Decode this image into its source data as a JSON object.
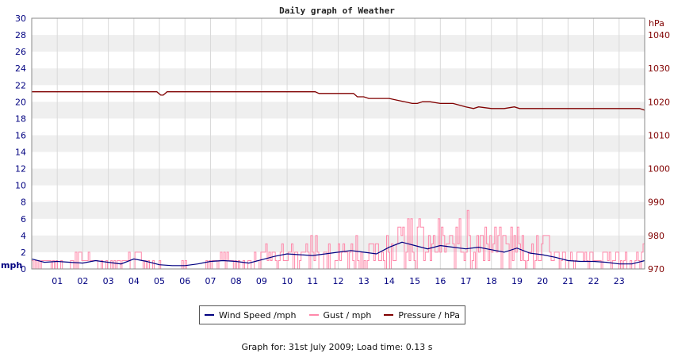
{
  "chart_data": {
    "type": "line",
    "title": "Daily graph of Weather",
    "grid": true,
    "x_ticks": [
      "01",
      "02",
      "03",
      "04",
      "05",
      "06",
      "07",
      "08",
      "09",
      "10",
      "11",
      "12",
      "13",
      "14",
      "15",
      "16",
      "17",
      "18",
      "19",
      "20",
      "21",
      "22",
      "23"
    ],
    "x_range": [
      0,
      24
    ],
    "y_left": {
      "label": "mph",
      "ticks": [
        0,
        2,
        4,
        6,
        8,
        10,
        12,
        14,
        16,
        18,
        20,
        22,
        24,
        26,
        28,
        30
      ],
      "range": [
        0,
        30
      ]
    },
    "y_right": {
      "label": "hPa",
      "ticks": [
        970,
        980,
        990,
        1000,
        1010,
        1020,
        1030,
        1040
      ],
      "range": [
        970,
        1045
      ]
    },
    "legend_position": "bottom",
    "series": [
      {
        "name": "Wind Speed /mph",
        "axis": "left",
        "color": "#000080",
        "x": [
          0,
          0.5,
          1,
          1.5,
          2,
          2.5,
          3,
          3.5,
          4,
          4.5,
          5,
          5.5,
          6,
          6.5,
          7,
          7.5,
          8,
          8.5,
          9,
          9.5,
          10,
          10.5,
          11,
          11.5,
          12,
          12.5,
          13,
          13.5,
          14,
          14.5,
          15,
          15.5,
          16,
          16.5,
          17,
          17.5,
          18,
          18.5,
          19,
          19.5,
          20,
          20.5,
          21,
          21.5,
          22,
          22.5,
          23,
          23.5,
          24
        ],
        "values": [
          1.2,
          0.8,
          0.9,
          0.8,
          0.7,
          1.0,
          0.8,
          0.6,
          1.2,
          0.9,
          0.5,
          0.4,
          0.4,
          0.6,
          0.9,
          1.0,
          0.9,
          0.7,
          1.1,
          1.5,
          1.8,
          1.7,
          1.6,
          1.8,
          2.0,
          2.2,
          2.0,
          1.8,
          2.6,
          3.2,
          2.8,
          2.4,
          2.8,
          2.6,
          2.4,
          2.6,
          2.3,
          2.0,
          2.5,
          1.9,
          1.7,
          1.4,
          1.0,
          0.9,
          0.9,
          0.8,
          0.6,
          0.6,
          1.0
        ]
      },
      {
        "name": "Gust / mph",
        "axis": "left",
        "color": "#ff88aa",
        "x": [
          0,
          0.5,
          1,
          1.5,
          2,
          2.5,
          3,
          3.5,
          4,
          4.5,
          5,
          5.5,
          6,
          6.5,
          7,
          7.5,
          8,
          8.5,
          9,
          9.5,
          10,
          10.5,
          11,
          11.5,
          12,
          12.5,
          13,
          13.5,
          14,
          14.5,
          15,
          15.5,
          16,
          16.5,
          17,
          17.5,
          18,
          18.5,
          19,
          19.5,
          20,
          20.5,
          21,
          21.5,
          22,
          22.5,
          23,
          23.5,
          24
        ],
        "values": [
          2,
          1,
          1,
          1,
          3,
          1,
          1,
          1,
          2,
          1,
          1,
          0,
          1,
          0,
          1,
          2,
          1,
          1,
          3,
          2,
          3,
          2,
          4,
          3,
          3,
          4,
          3,
          3,
          4,
          5,
          7,
          4,
          6,
          5,
          7,
          4,
          6,
          4,
          5,
          3,
          4,
          3,
          2,
          2,
          2,
          2,
          2,
          1,
          3
        ],
        "noisy": true
      },
      {
        "name": "Pressure / hPa",
        "axis": "right",
        "color": "#800000",
        "x": [
          0,
          4.9,
          5.05,
          5.15,
          5.3,
          6,
          11.1,
          11.25,
          12.6,
          12.75,
          13.0,
          13.2,
          13.5,
          14.0,
          14.3,
          14.6,
          14.9,
          15.1,
          15.3,
          15.6,
          16.0,
          16.5,
          17.0,
          17.3,
          17.5,
          18.0,
          18.5,
          18.9,
          19.1,
          19.5,
          23.8,
          24
        ],
        "values": [
          1023,
          1023,
          1022,
          1022,
          1023,
          1023,
          1023,
          1022.5,
          1022.5,
          1021.5,
          1021.5,
          1021,
          1021,
          1021,
          1020.5,
          1020,
          1019.5,
          1019.5,
          1020,
          1020,
          1019.5,
          1019.5,
          1018.5,
          1018,
          1018.5,
          1018,
          1018,
          1018.5,
          1018,
          1018,
          1018,
          1017.5
        ]
      }
    ]
  },
  "legend": [
    {
      "label": "Wind Speed /mph",
      "color": "#000080"
    },
    {
      "label": "Gust / mph",
      "color": "#ff88aa"
    },
    {
      "label": "Pressure / hPa",
      "color": "#800000"
    }
  ],
  "footer": "Graph for: 31st July 2009; Load time: 0.13 s"
}
